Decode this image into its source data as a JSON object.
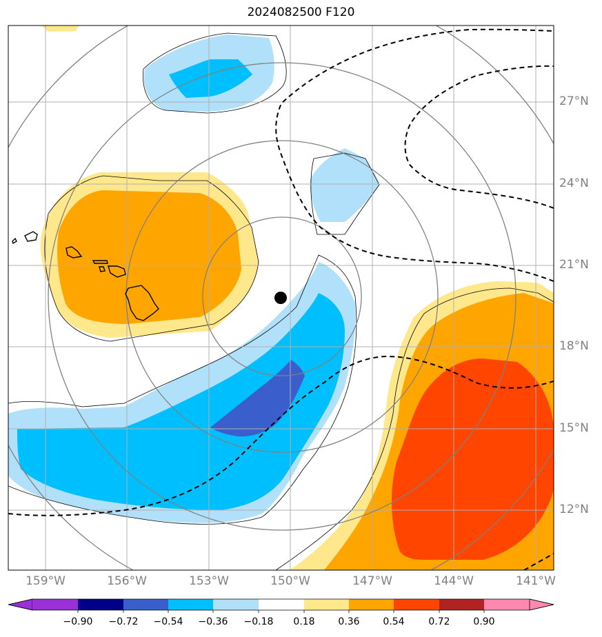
{
  "title": "2024082500 F120",
  "lat_labels": [
    "27°N",
    "24°N",
    "21°N",
    "18°N",
    "15°N",
    "12°N"
  ],
  "lon_labels": [
    "159°W",
    "156°W",
    "153°W",
    "150°W",
    "147°W",
    "144°W",
    "141°W"
  ],
  "colorbar": {
    "ticks": [
      "−0.90",
      "−0.72",
      "−0.54",
      "−0.36",
      "−0.18",
      "0.18",
      "0.36",
      "0.54",
      "0.72",
      "0.90"
    ],
    "colors": [
      "#9a30d8",
      "#00008b",
      "#3a5fcd",
      "#00bfff",
      "#b0e0fa",
      "#ffffff",
      "#ffe88c",
      "#ffa500",
      "#ff4500",
      "#b22222",
      "#ff88b0"
    ]
  },
  "colors": {
    "neg_light": "#b0e0fa",
    "neg_mid": "#00bfff",
    "neg_dark": "#3a5fcd",
    "pos_light": "#ffe88c",
    "pos_mid": "#ffa500",
    "pos_dark": "#ff4500",
    "grid": "#b0b0b0",
    "range_rings": "#808080"
  },
  "storm_marker": {
    "lat": 19.8,
    "lon": -150.3
  }
}
